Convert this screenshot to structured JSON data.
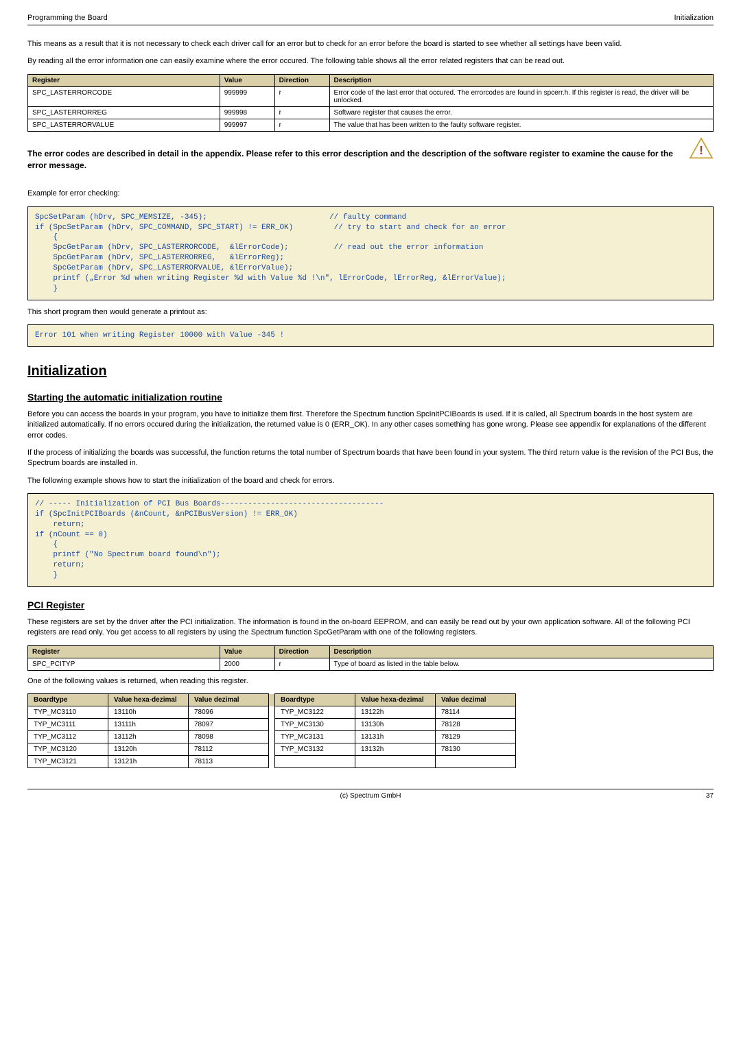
{
  "header": {
    "left": "Programming the Board",
    "right": "Initialization"
  },
  "intro1": "This means as a result that it is not necessary to check each driver call for an error but to check for an error before the board is started to see whether all settings have been valid.",
  "intro2": "By reading all the error information one can easily examine where the error occured. The following table shows all the error related registers that can be read out.",
  "table1": {
    "headers": [
      "Register",
      "Value",
      "Direction",
      "Description"
    ],
    "rows": [
      [
        "SPC_LASTERRORCODE",
        "999999",
        "r",
        "Error code of the last error that occured. The errorcodes are found in spcerr.h. If this register is read, the driver will be unlocked."
      ],
      [
        "SPC_LASTERRORREG",
        "999998",
        "r",
        "Software register that causes the error."
      ],
      [
        "SPC_LASTERRORVALUE",
        "999997",
        "r",
        "The value that has been written to the faulty software register."
      ]
    ]
  },
  "warning": "The error codes are described in detail in the appendix. Please refer to this error description and the description of the software register to examine the cause for the error message.",
  "example_label": "Example for error checking:",
  "code1": "SpcSetParam (hDrv, SPC_MEMSIZE, -345);                           // faulty command\nif (SpcSetParam (hDrv, SPC_COMMAND, SPC_START) != ERR_OK)         // try to start and check for an error\n    {\n    SpcGetParam (hDrv, SPC_LASTERRORCODE,  &lErrorCode);          // read out the error information\n    SpcGetParam (hDrv, SPC_LASTERRORREG,   &lErrorReg);\n    SpcGetParam (hDrv, SPC_LASTERRORVALUE, &lErrorValue);\n    printf („Error %d when writing Register %d with Value %d !\\n\", lErrorCode, lErrorReg, &lErrorValue);\n    }",
  "printout_label": "This short program then would generate a printout as:",
  "code2": "Error 101 when writing Register 10000 with Value -345 !",
  "h1_init": "Initialization",
  "h2_start": "Starting the automatic initialization routine",
  "init_p1": "Before you can access the boards in your program, you have to initialize them first. Therefore the Spectrum function SpcInitPCIBoards is used. If it is called, all Spectrum boards in the host system are initialized automatically. If no errors occured during the initialization, the returned value is 0 (ERR_OK). In any other cases something has gone wrong. Please see appendix for explanations of the different error codes.",
  "init_p2": "If the process of initializing the boards was successful, the function returns the total number of Spectrum boards that have been found in your system. The third return value is the revision of the PCI Bus, the Spectrum boards are installed in.",
  "init_p3": "The following example shows how to start the initialization of the board and check for errors.",
  "code3": "// ----- Initialization of PCI Bus Boards------------------------------------\nif (SpcInitPCIBoards (&nCount, &nPCIBusVersion) != ERR_OK)\n    return;\nif (nCount == 0)\n    {\n    printf (\"No Spectrum board found\\n\");\n    return;\n    }",
  "h2_pci": "PCI Register",
  "pci_p1": "These registers are set by the driver after the PCI initialization. The information is found in the on-board EEPROM, and can easily be read out by your own application software. All of the following PCI registers are read only. You get access to all registers by using the Spectrum function SpcGetParam with one of the following registers.",
  "table2": {
    "headers": [
      "Register",
      "Value",
      "Direction",
      "Description"
    ],
    "rows": [
      [
        "SPC_PCITYP",
        "2000",
        "r",
        "Type of board as listed in the table below."
      ]
    ]
  },
  "note": "One of the following values is returned, when reading this register.",
  "boardtable": {
    "headers": [
      "Boardtype",
      "Value hexa-dezimal",
      "Value dezimal",
      "Boardtype",
      "Value hexa-dezimal",
      "Value dezimal"
    ],
    "rows": [
      [
        "TYP_MC3110",
        "13110h",
        "78096",
        "TYP_MC3122",
        "13122h",
        "78114"
      ],
      [
        "TYP_MC3111",
        "13111h",
        "78097",
        "TYP_MC3130",
        "13130h",
        "78128"
      ],
      [
        "TYP_MC3112",
        "13112h",
        "78098",
        "TYP_MC3131",
        "13131h",
        "78129"
      ],
      [
        "TYP_MC3120",
        "13120h",
        "78112",
        "TYP_MC3132",
        "13132h",
        "78130"
      ],
      [
        "TYP_MC3121",
        "13121h",
        "78113",
        "",
        "",
        ""
      ]
    ]
  },
  "footer": {
    "center": "(c) Spectrum GmbH",
    "page": "37"
  },
  "colors": {
    "header_bg": "#d9cfa8",
    "code_bg": "#f6f0d2",
    "code_text": "#1a4aa3",
    "warn_stroke": "#c8a030",
    "warn_fill": "#ffffff"
  },
  "col_widths": {
    "t1": [
      "28%",
      "8%",
      "8%",
      "56%"
    ],
    "t2": [
      "28%",
      "8%",
      "8%",
      "56%"
    ],
    "board": [
      "90",
      "90",
      "90",
      "90",
      "90",
      "90"
    ]
  }
}
